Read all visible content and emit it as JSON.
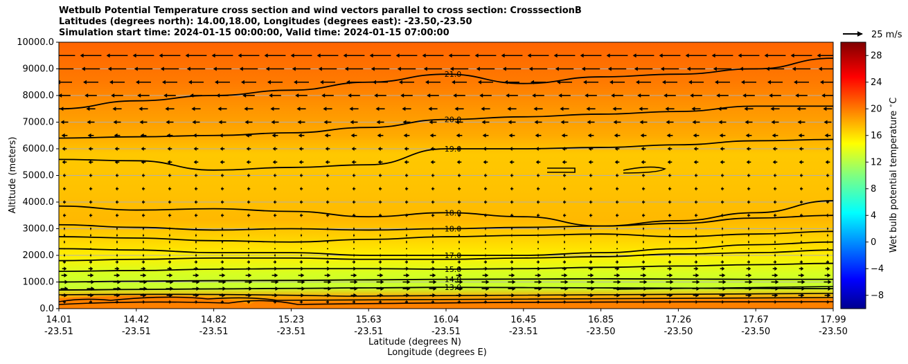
{
  "chart_data": {
    "type": "contour",
    "title_lines": [
      "Wetbulb Potential Temperature cross section and wind vectors parallel to cross section: CrosssectionB",
      "Latitudes (degrees north): 14.00,18.00, Longitudes (degrees east): -23.50,-23.50",
      "Simulation start time: 2024-01-15 00:00:00, Valid time: 2024-01-15 07:00:00"
    ],
    "ylabel": "Altitude (meters)",
    "xlabel_lat": "Latitude (degrees N)",
    "xlabel_lon": "Longitude (degrees E)",
    "ylim": [
      0,
      10000
    ],
    "yticks": [
      "0.0",
      "1000.0",
      "2000.0",
      "3000.0",
      "4000.0",
      "5000.0",
      "6000.0",
      "7000.0",
      "8000.0",
      "9000.0",
      "10000.0"
    ],
    "x_ticks": [
      {
        "lat": "14.01",
        "lon": "-23.51"
      },
      {
        "lat": "14.42",
        "lon": "-23.51"
      },
      {
        "lat": "14.82",
        "lon": "-23.51"
      },
      {
        "lat": "15.23",
        "lon": "-23.51"
      },
      {
        "lat": "15.63",
        "lon": "-23.51"
      },
      {
        "lat": "16.04",
        "lon": "-23.51"
      },
      {
        "lat": "16.45",
        "lon": "-23.51"
      },
      {
        "lat": "16.85",
        "lon": "-23.50"
      },
      {
        "lat": "17.26",
        "lon": "-23.50"
      },
      {
        "lat": "17.67",
        "lon": "-23.50"
      },
      {
        "lat": "17.99",
        "lon": "-23.50"
      }
    ],
    "xlim": [
      14.01,
      17.99
    ],
    "grid": "horizontal",
    "colorbar": {
      "label": "Wet bulb potential temperature $^\\circ$C",
      "ticks": [
        "−8",
        "−4",
        "0",
        "4",
        "8",
        "12",
        "16",
        "20",
        "24",
        "28"
      ],
      "range": [
        -10,
        30
      ],
      "colormap": "jet"
    },
    "quiver_key": "25 m/s",
    "contour_lines": [
      {
        "level": "13.0",
        "y": [
          700,
          720,
          740,
          760,
          780,
          800,
          790,
          780,
          770,
          760,
          750
        ]
      },
      {
        "level": "14.0",
        "y": [
          1000,
          1030,
          1050,
          1060,
          1080,
          1100,
          1110,
          1120,
          1110,
          1100,
          1100
        ]
      },
      {
        "level": "15.0",
        "y": [
          1400,
          1430,
          1480,
          1500,
          1500,
          1480,
          1500,
          1550,
          1600,
          1650,
          1700
        ]
      },
      {
        "level": "",
        "y": [
          1800,
          1850,
          1900,
          1900,
          1850,
          1850,
          1900,
          1950,
          2050,
          2100,
          2200
        ]
      },
      {
        "level": "17.0",
        "y": [
          2250,
          2200,
          2100,
          2100,
          2000,
          2000,
          2000,
          2100,
          2250,
          2400,
          2500
        ]
      },
      {
        "level": "",
        "y": [
          2700,
          2650,
          2550,
          2500,
          2600,
          2700,
          2750,
          2800,
          2700,
          2800,
          2900
        ]
      },
      {
        "level": "18.0",
        "y": [
          3150,
          3050,
          2950,
          3000,
          2950,
          3000,
          3050,
          3100,
          3200,
          3400,
          3500
        ]
      },
      {
        "level": "18.0",
        "y": [
          3850,
          3700,
          3750,
          3650,
          3450,
          3600,
          3450,
          3100,
          3300,
          3600,
          4050
        ]
      },
      {
        "level": "19.0",
        "y": [
          5600,
          5550,
          5200,
          5300,
          5400,
          6000,
          6000,
          6050,
          6150,
          6300,
          6350
        ]
      },
      {
        "level": "20.0",
        "y": [
          6400,
          6450,
          6500,
          6600,
          6800,
          7100,
          7200,
          7300,
          7400,
          7600,
          7600
        ]
      },
      {
        "level": "21.0",
        "y": [
          7500,
          7800,
          8000,
          8200,
          8500,
          8800,
          8450,
          8700,
          8800,
          9000,
          9400
        ]
      }
    ],
    "contour_labels": [
      "13.0",
      "14.0",
      "15.0",
      "17.0",
      "18.0",
      "18.0",
      "19.0",
      "20.0",
      "21.0",
      "17.0",
      "17.0",
      "17.0",
      "18.0",
      "18.0",
      "20.0",
      "13.0",
      "14.0",
      "15.0",
      "16.0",
      "18.0",
      "19.0",
      "20.0"
    ],
    "wind_field": {
      "description": "wind component parallel to cross section",
      "levels_m": [
        250,
        500,
        750,
        1000,
        1250,
        1500,
        1750,
        2000,
        2250,
        2500,
        2750,
        3000,
        3500,
        4000,
        4500,
        5000,
        5500,
        6000,
        6500,
        7000,
        7500,
        8000,
        8500,
        9000,
        9500
      ],
      "u_ms": [
        2,
        4,
        5,
        5,
        4,
        3,
        2,
        1,
        0,
        -1,
        -1,
        -1,
        -2,
        -2,
        -2,
        -2,
        -3,
        -3,
        -4,
        -5,
        -6,
        -8,
        -10,
        -12,
        -14
      ]
    }
  }
}
